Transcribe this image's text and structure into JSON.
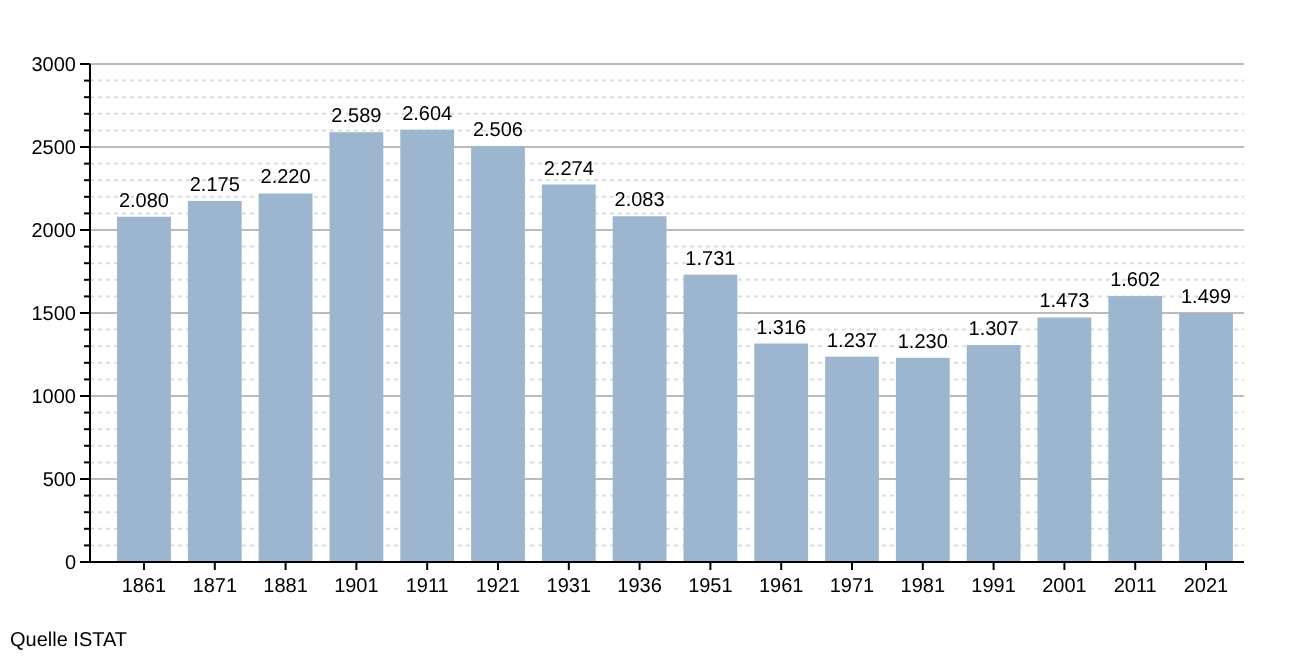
{
  "chart_data": {
    "type": "bar",
    "categories": [
      "1861",
      "1871",
      "1881",
      "1901",
      "1911",
      "1921",
      "1931",
      "1936",
      "1951",
      "1961",
      "1971",
      "1981",
      "1991",
      "2001",
      "2011",
      "2021"
    ],
    "values": [
      2080,
      2175,
      2220,
      2589,
      2604,
      2506,
      2274,
      2083,
      1731,
      1316,
      1237,
      1230,
      1307,
      1473,
      1602,
      1499
    ],
    "value_labels": [
      "2.080",
      "2.175",
      "2.220",
      "2.589",
      "2.604",
      "2.506",
      "2.274",
      "2.083",
      "1.731",
      "1.316",
      "1.237",
      "1.230",
      "1.307",
      "1.473",
      "1.602",
      "1.499"
    ],
    "color": "#9db6cf",
    "ylim": [
      0,
      3000
    ],
    "yticks": [
      0,
      {
        "value": 100,
        "label": null
      },
      {
        "value": 200,
        "label": null
      },
      {
        "value": 300,
        "label": null
      },
      {
        "value": 400,
        "label": null
      },
      500,
      {
        "value": 600,
        "label": null
      },
      {
        "value": 700,
        "label": null
      },
      {
        "value": 800,
        "label": null
      },
      {
        "value": 900,
        "label": null
      },
      1000,
      {
        "value": 1100,
        "label": null
      },
      {
        "value": 1200,
        "label": null
      },
      {
        "value": 1300,
        "label": null
      },
      {
        "value": 1400,
        "label": null
      },
      1500,
      {
        "value": 1600,
        "label": null
      },
      {
        "value": 1700,
        "label": null
      },
      {
        "value": 1800,
        "label": null
      },
      {
        "value": 1900,
        "label": null
      },
      2000,
      {
        "value": 2100,
        "label": null
      },
      {
        "value": 2200,
        "label": null
      },
      {
        "value": 2300,
        "label": null
      },
      {
        "value": 2400,
        "label": null
      },
      2500,
      {
        "value": 2600,
        "label": null
      },
      {
        "value": 2700,
        "label": null
      },
      {
        "value": 2800,
        "label": null
      },
      {
        "value": 2900,
        "label": null
      },
      3000
    ],
    "grid": "y",
    "annotations": [
      "Quelle ISTAT"
    ]
  }
}
